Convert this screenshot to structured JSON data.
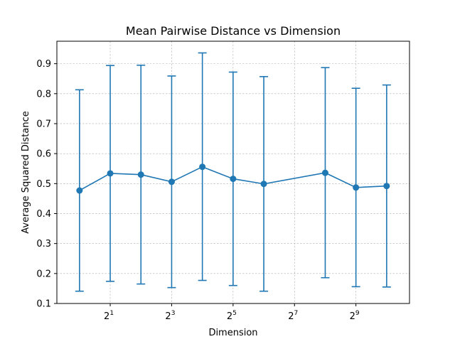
{
  "chart_data": {
    "type": "line",
    "title": "Mean Pairwise Distance vs Dimension",
    "xlabel": "Dimension",
    "ylabel": "Average Squared Distance",
    "x_scale": "log2",
    "xlim": [
      0.6,
      1715
    ],
    "ylim": [
      0.1,
      0.975
    ],
    "x_ticks": [
      {
        "value": 2,
        "base": "2",
        "exp": "1"
      },
      {
        "value": 8,
        "base": "2",
        "exp": "3"
      },
      {
        "value": 32,
        "base": "2",
        "exp": "5"
      },
      {
        "value": 128,
        "base": "2",
        "exp": "7"
      },
      {
        "value": 512,
        "base": "2",
        "exp": "9"
      }
    ],
    "y_ticks": [
      "0.1",
      "0.2",
      "0.3",
      "0.4",
      "0.5",
      "0.6",
      "0.7",
      "0.8",
      "0.9"
    ],
    "grid": true,
    "color": "#1f77b4",
    "series": [
      {
        "x": [
          1,
          2,
          4,
          8,
          16,
          32,
          64,
          256,
          512,
          1024
        ],
        "y": [
          0.477,
          0.534,
          0.53,
          0.506,
          0.556,
          0.516,
          0.499,
          0.536,
          0.487,
          0.492
        ],
        "err_low": [
          0.141,
          0.174,
          0.165,
          0.153,
          0.177,
          0.16,
          0.141,
          0.186,
          0.156,
          0.155
        ],
        "err_high": [
          0.813,
          0.894,
          0.895,
          0.859,
          0.936,
          0.872,
          0.857,
          0.887,
          0.818,
          0.829
        ]
      }
    ]
  }
}
